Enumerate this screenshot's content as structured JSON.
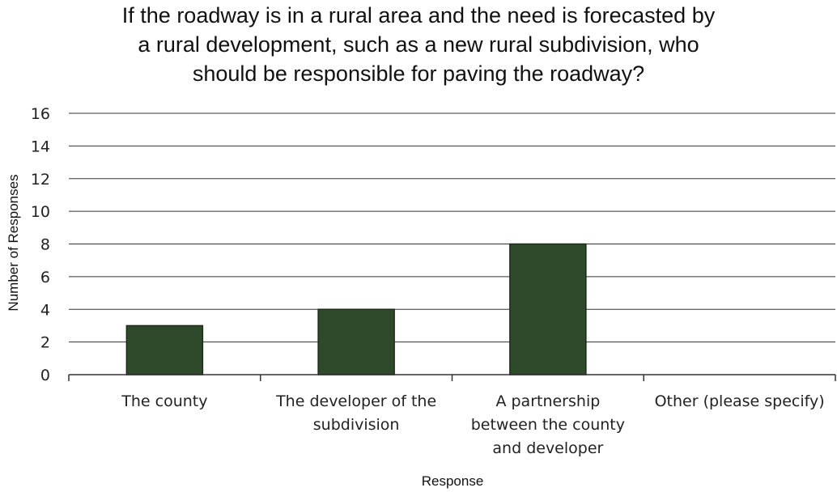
{
  "chart_data": {
    "type": "bar",
    "title": [
      "If the roadway is in a rural area and the need is forecasted by",
      "a rural development, such as a new rural subdivision, who",
      "should be responsible for paving the roadway?"
    ],
    "xlabel": "Response",
    "ylabel": "Number of Responses",
    "categories": [
      [
        "The county"
      ],
      [
        "The developer of the",
        "subdivision"
      ],
      [
        "A partnership",
        "between the county",
        "and developer"
      ],
      [
        "Other (please specify)"
      ]
    ],
    "values": [
      3,
      4,
      8,
      0
    ],
    "ylim": [
      0,
      16
    ],
    "yticks": [
      0,
      2,
      4,
      6,
      8,
      10,
      12,
      14,
      16
    ],
    "grid": true,
    "legend": "none",
    "colors": {
      "bar": "#2f4a2a",
      "bar_edge": "#1c2a18",
      "grid": "#333333",
      "axis": "#333333"
    }
  }
}
